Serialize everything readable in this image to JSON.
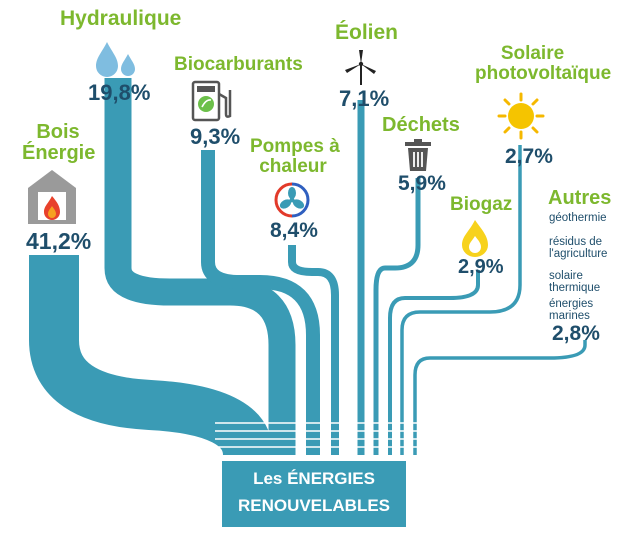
{
  "sources": {
    "hydraulique": {
      "label": "Hydraulique",
      "value": "19,8%",
      "icon": "water-drops-icon"
    },
    "biocarburants": {
      "label": "Biocarburants",
      "value": "9,3%",
      "icon": "fuel-pump-leaf-icon"
    },
    "eolien": {
      "label": "Éolien",
      "value": "7,1%",
      "icon": "wind-turbine-icon"
    },
    "solaire": {
      "label_line1": "Solaire",
      "label_line2": "photovoltaïque",
      "value": "2,7%",
      "icon": "sun-icon"
    },
    "bois": {
      "label_line1": "Bois",
      "label_line2": "Énergie",
      "value": "41,2%",
      "icon": "fireplace-icon"
    },
    "pompes": {
      "label_line1": "Pompes à",
      "label_line2": "chaleur",
      "value": "8,4%",
      "icon": "heat-pump-fan-icon"
    },
    "dechets": {
      "label": "Déchets",
      "value": "5,9%",
      "icon": "trash-bin-icon"
    },
    "biogaz": {
      "label": "Biogaz",
      "value": "2,9%",
      "icon": "flame-icon"
    },
    "autres": {
      "label": "Autres",
      "items": [
        "géothermie",
        "résidus de",
        "l'agriculture",
        "solaire",
        "thermique",
        "énergies",
        "marines"
      ],
      "value": "2,8%"
    }
  },
  "center": {
    "line1": "Les ÉNERGIES",
    "line2": "RENOUVELABLES"
  },
  "colors": {
    "flow": "#3a9bb5",
    "label": "#7db82e",
    "value": "#1f4e6b"
  }
}
